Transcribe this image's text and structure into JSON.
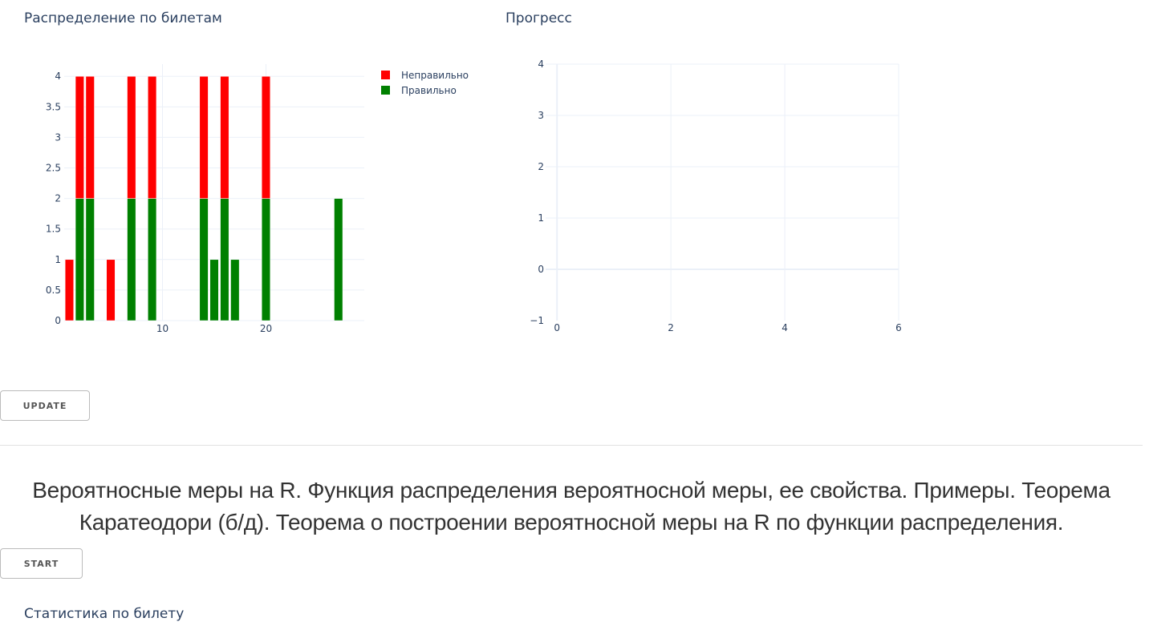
{
  "titles": {
    "distribution": "Распределение по билетам",
    "progress": "Прогресс",
    "ticket_stats": "Статистика по билету"
  },
  "buttons": {
    "update": "UPDATE",
    "start": "START"
  },
  "question": "Вероятносные меры на R. Функция распределения вероятносной меры, ее свойства. Примеры. Теорема Каратеодори (б/д). Теорема о построении вероятносной меры на R по функции распределения.",
  "colors": {
    "wrong": "#ff0000",
    "correct": "#008000",
    "grid": "#ebf0f8",
    "axis_text": "#2a3f5f"
  },
  "chart_data": [
    {
      "type": "bar",
      "barmode": "stack",
      "title": "Распределение по билетам",
      "x": [
        1,
        2,
        3,
        5,
        7,
        9,
        14,
        15,
        16,
        17,
        20,
        27
      ],
      "series": [
        {
          "name": "Правильно",
          "color": "#008000",
          "values": [
            0,
            2,
            2,
            0,
            2,
            2,
            2,
            1,
            2,
            1,
            2,
            2
          ]
        },
        {
          "name": "Неправильно",
          "color": "#ff0000",
          "values": [
            1,
            2,
            2,
            1,
            2,
            2,
            2,
            0,
            2,
            0,
            2,
            0
          ]
        }
      ],
      "xlim": [
        0.5,
        29.5
      ],
      "ylim": [
        0,
        4.2
      ],
      "xticks": [
        10,
        20
      ],
      "yticks": [
        0,
        0.5,
        1,
        1.5,
        2,
        2.5,
        3,
        3.5,
        4
      ],
      "ytick_labels": [
        "0",
        "0.5",
        "1",
        "1.5",
        "2",
        "2.5",
        "3",
        "3.5",
        "4"
      ],
      "legend_order": [
        "Неправильно",
        "Правильно"
      ],
      "legend_position": "top-right",
      "grid": true,
      "xlabel": "",
      "ylabel": ""
    },
    {
      "type": "line",
      "title": "Прогресс",
      "series": [],
      "xlim": [
        -0.2,
        6
      ],
      "ylim": [
        -1,
        4
      ],
      "xticks": [
        0,
        2,
        4,
        6
      ],
      "yticks": [
        -1,
        0,
        1,
        2,
        3,
        4
      ],
      "ytick_labels": [
        "−1",
        "0",
        "1",
        "2",
        "3",
        "4"
      ],
      "grid": true,
      "xlabel": "",
      "ylabel": ""
    }
  ]
}
